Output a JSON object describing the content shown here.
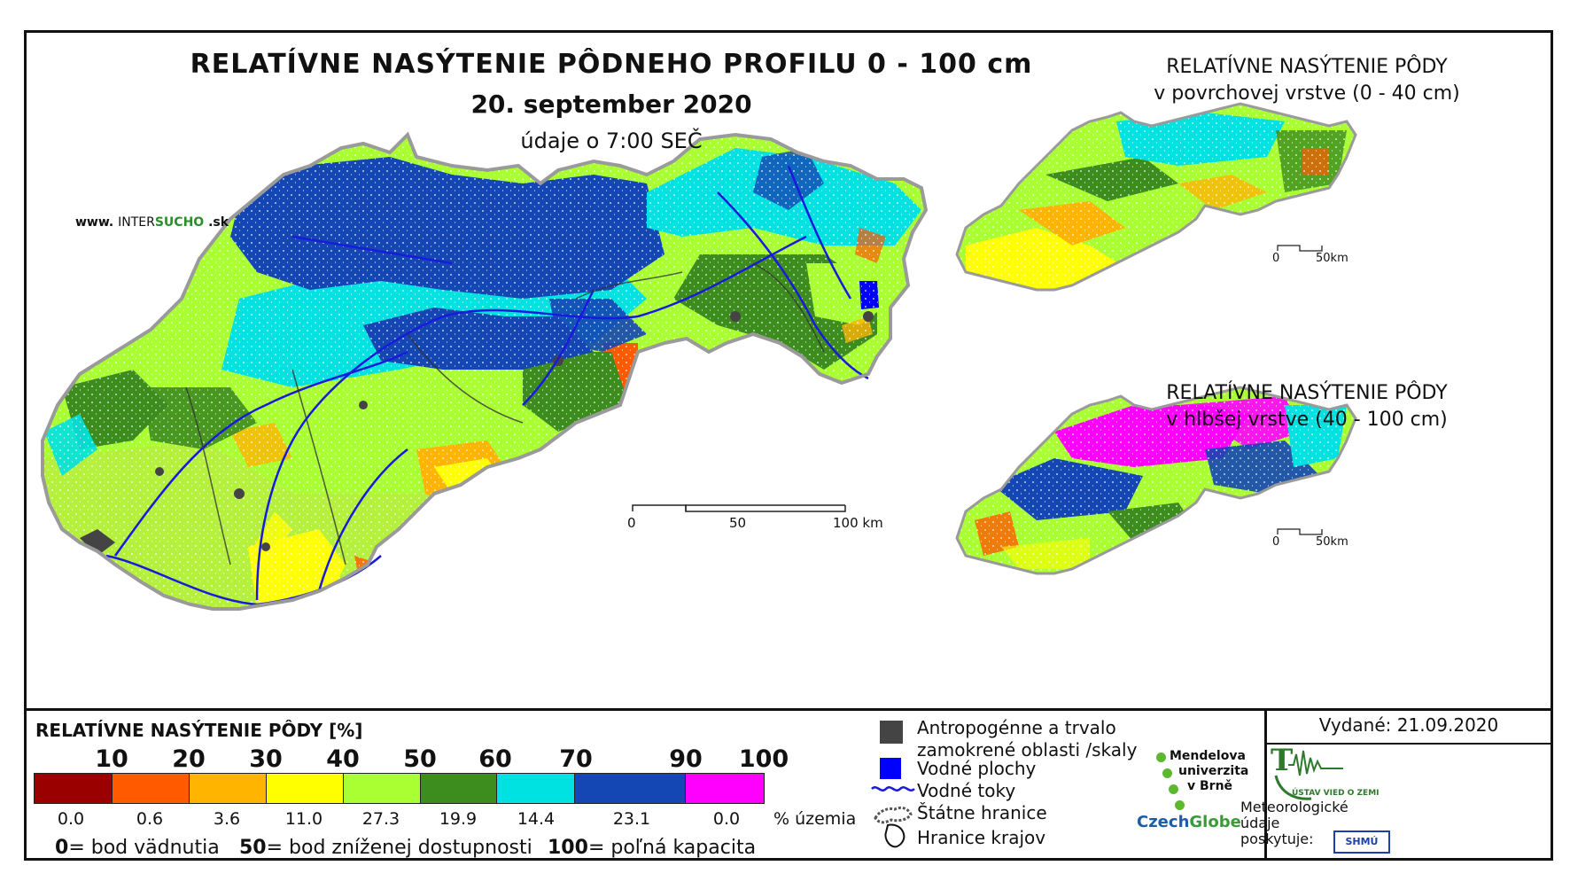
{
  "title": {
    "line1": "RELATÍVNE NASÝTENIE PÔDNEHO PROFILU 0 - 100 cm",
    "line2": "20. september 2020",
    "line3": "údaje o 7:00 SEČ"
  },
  "website": {
    "prefix": "www.",
    "brand_a": "INTER",
    "brand_b": "SUCHO",
    "suffix": ".sk"
  },
  "insets": [
    {
      "line1": "RELATÍVNE NASÝTENIE PÔDY",
      "line2": "v povrchovej vrstve (0 - 40 cm)",
      "scale_start": "0",
      "scale_end": "50km"
    },
    {
      "line1": "RELATÍVNE NASÝTENIE PÔDY",
      "line2": "v hlbšej vrstve (40 - 100 cm)",
      "scale_start": "0",
      "scale_end": "50km"
    }
  ],
  "main_scale": {
    "start": "0",
    "mid": "50",
    "end": "100 km"
  },
  "legend": {
    "title": "RELATÍVNE NASÝTENIE PÔDY [%]",
    "ticks": [
      "10",
      "20",
      "30",
      "40",
      "50",
      "60",
      "70",
      "90",
      "100"
    ],
    "classes": [
      {
        "color": "#9b0000",
        "percent": "0.0"
      },
      {
        "color": "#ff5a00",
        "percent": "0.6"
      },
      {
        "color": "#ffb400",
        "percent": "3.6"
      },
      {
        "color": "#ffff00",
        "percent": "11.0"
      },
      {
        "color": "#aaff32",
        "percent": "27.3"
      },
      {
        "color": "#3c8c1e",
        "percent": "19.9"
      },
      {
        "color": "#00e1e1",
        "percent": "14.4"
      },
      {
        "color": "#1446b4",
        "percent": "23.1"
      },
      {
        "color": "#ff00ff",
        "percent": "0.0"
      }
    ],
    "unit": "% územia",
    "notes": [
      {
        "value": "0",
        "text": "= bod vädnutia"
      },
      {
        "value": "50",
        "text": "= bod zníženej dostupnosti"
      },
      {
        "value": "100",
        "text": "= poľná kapacita"
      }
    ]
  },
  "symbols": {
    "anthropogenic_line1": "Antropogénne a trvalo",
    "anthropogenic_line2": "zamokrené oblasti /skaly",
    "water_areas": "Vodné plochy",
    "rivers": "Vodné toky",
    "state_border": "Štátne hranice",
    "region_border": "Hranice krajov",
    "anthropogenic_color": "#444444",
    "water_color": "#0000ff",
    "river_color": "#1a1adc"
  },
  "issued": "Vydané: 21.09.2020",
  "credits": {
    "mendel": [
      "Mendelova",
      "univerzita",
      "v Brně"
    ],
    "czechglobe_a": "Czech",
    "czechglobe_b": "Globe",
    "ustav": "ÚSTAV VIED O ZEMI",
    "meteo": [
      "Meteorologické",
      "údaje",
      "poskytuje:"
    ],
    "shmu": "SHMÚ"
  }
}
